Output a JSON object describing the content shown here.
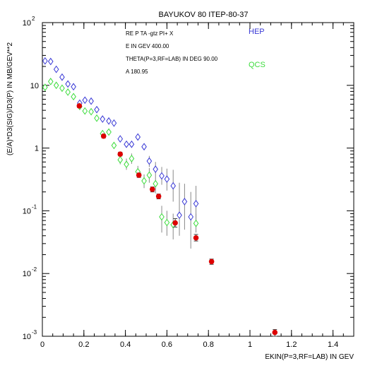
{
  "chart_data": {
    "type": "scatter",
    "title": "BAYUKOV 80   ITEP-80-37",
    "xlabel": "EKIN(P=3,RF=LAB) IN GEV",
    "ylabel": "(E/A)*D3(SIG)/D3(P) IN MB/GEV**2",
    "xlim": [
      0,
      1.5
    ],
    "ylim": [
      0.001,
      100
    ],
    "yscale": "log",
    "grid": false,
    "xticks": [
      {
        "v": 0,
        "label": "0"
      },
      {
        "v": 0.2,
        "label": "0.2"
      },
      {
        "v": 0.4,
        "label": "0.4"
      },
      {
        "v": 0.6,
        "label": "0.6"
      },
      {
        "v": 0.8,
        "label": "0.8"
      },
      {
        "v": 1.0,
        "label": "1"
      },
      {
        "v": 1.2,
        "label": "1.2"
      },
      {
        "v": 1.4,
        "label": "1.4"
      }
    ],
    "yticks": [
      {
        "v": 100,
        "base": "10",
        "exp": "2"
      },
      {
        "v": 10,
        "base": "10",
        "exp": ""
      },
      {
        "v": 1,
        "base": "1",
        "exp": ""
      },
      {
        "v": 0.1,
        "base": "10",
        "exp": "-1"
      },
      {
        "v": 0.01,
        "base": "10",
        "exp": "-2"
      },
      {
        "v": 0.001,
        "base": "10",
        "exp": "-3"
      }
    ],
    "info_lines": [
      "RE   P TA -gtz PI+ X",
      "E IN GEV   400.00",
      "THETA(P=3,RF=LAB) IN DEG   90.00",
      "A   180.95"
    ],
    "legend_placement": "top-right",
    "series": [
      {
        "name": "HEP",
        "color": "#3a3ad6",
        "marker": "diamond-open",
        "points": [
          {
            "x": 0.013,
            "y": 24.5,
            "lo": 24.5,
            "hi": 24.5
          },
          {
            "x": 0.04,
            "y": 24.0,
            "lo": 24.0,
            "hi": 24.0
          },
          {
            "x": 0.067,
            "y": 18.0,
            "lo": 18.0,
            "hi": 18.0
          },
          {
            "x": 0.095,
            "y": 13.5,
            "lo": 13.5,
            "hi": 13.5
          },
          {
            "x": 0.123,
            "y": 10.5,
            "lo": 10.5,
            "hi": 10.5
          },
          {
            "x": 0.15,
            "y": 9.5,
            "lo": 9.5,
            "hi": 9.5
          },
          {
            "x": 0.18,
            "y": 5.2,
            "lo": 5.2,
            "hi": 5.2
          },
          {
            "x": 0.205,
            "y": 5.8,
            "lo": 5.8,
            "hi": 5.8
          },
          {
            "x": 0.235,
            "y": 5.6,
            "lo": 5.6,
            "hi": 5.6
          },
          {
            "x": 0.262,
            "y": 4.1,
            "lo": 4.1,
            "hi": 4.1
          },
          {
            "x": 0.29,
            "y": 2.9,
            "lo": 2.9,
            "hi": 2.9
          },
          {
            "x": 0.32,
            "y": 2.7,
            "lo": 2.7,
            "hi": 2.7
          },
          {
            "x": 0.345,
            "y": 2.5,
            "lo": 2.5,
            "hi": 2.5
          },
          {
            "x": 0.375,
            "y": 1.4,
            "lo": 1.4,
            "hi": 1.4
          },
          {
            "x": 0.405,
            "y": 1.15,
            "lo": 1.15,
            "hi": 1.15
          },
          {
            "x": 0.43,
            "y": 1.15,
            "lo": 1.15,
            "hi": 1.15
          },
          {
            "x": 0.46,
            "y": 1.5,
            "lo": 1.5,
            "hi": 1.5
          },
          {
            "x": 0.49,
            "y": 1.05,
            "lo": 1.05,
            "hi": 1.05
          },
          {
            "x": 0.515,
            "y": 0.62,
            "lo": 0.5,
            "hi": 0.75
          },
          {
            "x": 0.545,
            "y": 0.46,
            "lo": 0.36,
            "hi": 0.6
          },
          {
            "x": 0.575,
            "y": 0.36,
            "lo": 0.26,
            "hi": 0.5
          },
          {
            "x": 0.6,
            "y": 0.32,
            "lo": 0.21,
            "hi": 0.47
          },
          {
            "x": 0.63,
            "y": 0.25,
            "lo": 0.14,
            "hi": 0.45
          },
          {
            "x": 0.66,
            "y": 0.085,
            "lo": 0.04,
            "hi": 0.28
          },
          {
            "x": 0.685,
            "y": 0.14,
            "lo": 0.05,
            "hi": 0.27
          },
          {
            "x": 0.715,
            "y": 0.08,
            "lo": 0.025,
            "hi": 0.2
          },
          {
            "x": 0.74,
            "y": 0.13,
            "lo": 0.065,
            "hi": 0.25
          }
        ]
      },
      {
        "name": "QCS",
        "color": "#3ddc3d",
        "marker": "diamond-open",
        "points": [
          {
            "x": 0.013,
            "y": 9.3,
            "lo": 9.3,
            "hi": 9.3
          },
          {
            "x": 0.04,
            "y": 11.5,
            "lo": 11.5,
            "hi": 11.5
          },
          {
            "x": 0.067,
            "y": 10.0,
            "lo": 10.0,
            "hi": 10.0
          },
          {
            "x": 0.095,
            "y": 9.0,
            "lo": 9.0,
            "hi": 9.0
          },
          {
            "x": 0.123,
            "y": 7.8,
            "lo": 7.8,
            "hi": 7.8
          },
          {
            "x": 0.15,
            "y": 6.6,
            "lo": 6.6,
            "hi": 6.6
          },
          {
            "x": 0.18,
            "y": 4.6,
            "lo": 4.6,
            "hi": 4.6
          },
          {
            "x": 0.205,
            "y": 3.9,
            "lo": 3.9,
            "hi": 3.9
          },
          {
            "x": 0.235,
            "y": 3.8,
            "lo": 3.8,
            "hi": 3.8
          },
          {
            "x": 0.262,
            "y": 3.0,
            "lo": 3.0,
            "hi": 3.0
          },
          {
            "x": 0.29,
            "y": 1.7,
            "lo": 1.7,
            "hi": 1.7
          },
          {
            "x": 0.32,
            "y": 1.8,
            "lo": 1.8,
            "hi": 1.8
          },
          {
            "x": 0.345,
            "y": 1.1,
            "lo": 1.1,
            "hi": 1.1
          },
          {
            "x": 0.375,
            "y": 0.65,
            "lo": 0.55,
            "hi": 0.78
          },
          {
            "x": 0.405,
            "y": 0.55,
            "lo": 0.45,
            "hi": 0.68
          },
          {
            "x": 0.43,
            "y": 0.68,
            "lo": 0.56,
            "hi": 0.82
          },
          {
            "x": 0.46,
            "y": 0.42,
            "lo": 0.34,
            "hi": 0.52
          },
          {
            "x": 0.49,
            "y": 0.3,
            "lo": 0.23,
            "hi": 0.38
          },
          {
            "x": 0.515,
            "y": 0.37,
            "lo": 0.28,
            "hi": 0.48
          },
          {
            "x": 0.545,
            "y": 0.27,
            "lo": 0.19,
            "hi": 0.36
          },
          {
            "x": 0.575,
            "y": 0.08,
            "lo": 0.045,
            "hi": 0.12
          },
          {
            "x": 0.6,
            "y": 0.065,
            "lo": 0.04,
            "hi": 0.1
          },
          {
            "x": 0.63,
            "y": 0.06,
            "lo": 0.035,
            "hi": 0.09
          },
          {
            "x": 0.74,
            "y": 0.063,
            "lo": 0.045,
            "hi": 0.09
          }
        ]
      },
      {
        "name": "",
        "color": "#dd0000",
        "marker": "circle-filled",
        "points": [
          {
            "x": 0.178,
            "y": 4.7,
            "lo": 4.4,
            "hi": 5.0
          },
          {
            "x": 0.295,
            "y": 1.55,
            "lo": 1.45,
            "hi": 1.65
          },
          {
            "x": 0.375,
            "y": 0.8,
            "lo": 0.75,
            "hi": 0.86
          },
          {
            "x": 0.465,
            "y": 0.37,
            "lo": 0.34,
            "hi": 0.4
          },
          {
            "x": 0.53,
            "y": 0.22,
            "lo": 0.2,
            "hi": 0.24
          },
          {
            "x": 0.56,
            "y": 0.17,
            "lo": 0.155,
            "hi": 0.185
          },
          {
            "x": 0.64,
            "y": 0.064,
            "lo": 0.055,
            "hi": 0.075
          },
          {
            "x": 0.74,
            "y": 0.037,
            "lo": 0.033,
            "hi": 0.042
          },
          {
            "x": 0.815,
            "y": 0.0155,
            "lo": 0.014,
            "hi": 0.017
          },
          {
            "x": 1.12,
            "y": 0.00115,
            "lo": 0.001,
            "hi": 0.00128
          }
        ]
      }
    ]
  }
}
